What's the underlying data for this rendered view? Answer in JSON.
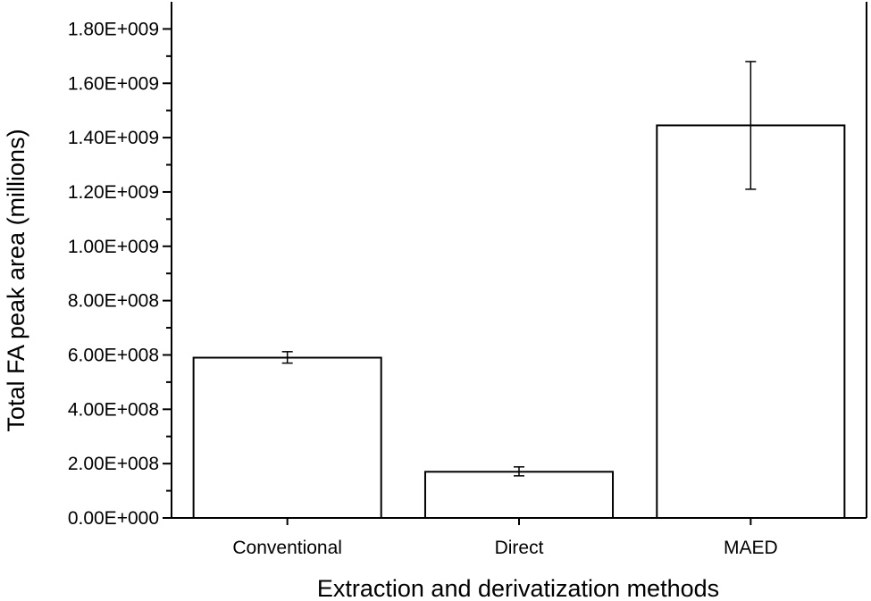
{
  "chart_data": {
    "type": "bar",
    "title": "",
    "xlabel": "Extraction and derivatization methods",
    "ylabel": "Total FA peak area (millions)",
    "categories": [
      "Conventional",
      "Direct",
      "MAED"
    ],
    "values": [
      590000000,
      170000000,
      1445000000
    ],
    "error_low": [
      570000000,
      155000000,
      1210000000
    ],
    "error_high": [
      612000000,
      188000000,
      1680000000
    ],
    "ylim": [
      0,
      1900000000
    ],
    "y_ticks": [
      0,
      200000000,
      400000000,
      600000000,
      800000000,
      1000000000,
      1200000000,
      1400000000,
      1600000000,
      1800000000
    ],
    "y_tick_labels": [
      "0.00E+000",
      "2.00E+008",
      "4.00E+008",
      "6.00E+008",
      "8.00E+008",
      "1.00E+009",
      "1.20E+009",
      "1.40E+009",
      "1.60E+009",
      "1.80E+009"
    ],
    "grid": false,
    "legend": "none",
    "colors": {
      "bar_fill": "#ffffff",
      "bar_stroke": "#000000",
      "axis": "#000000"
    }
  }
}
